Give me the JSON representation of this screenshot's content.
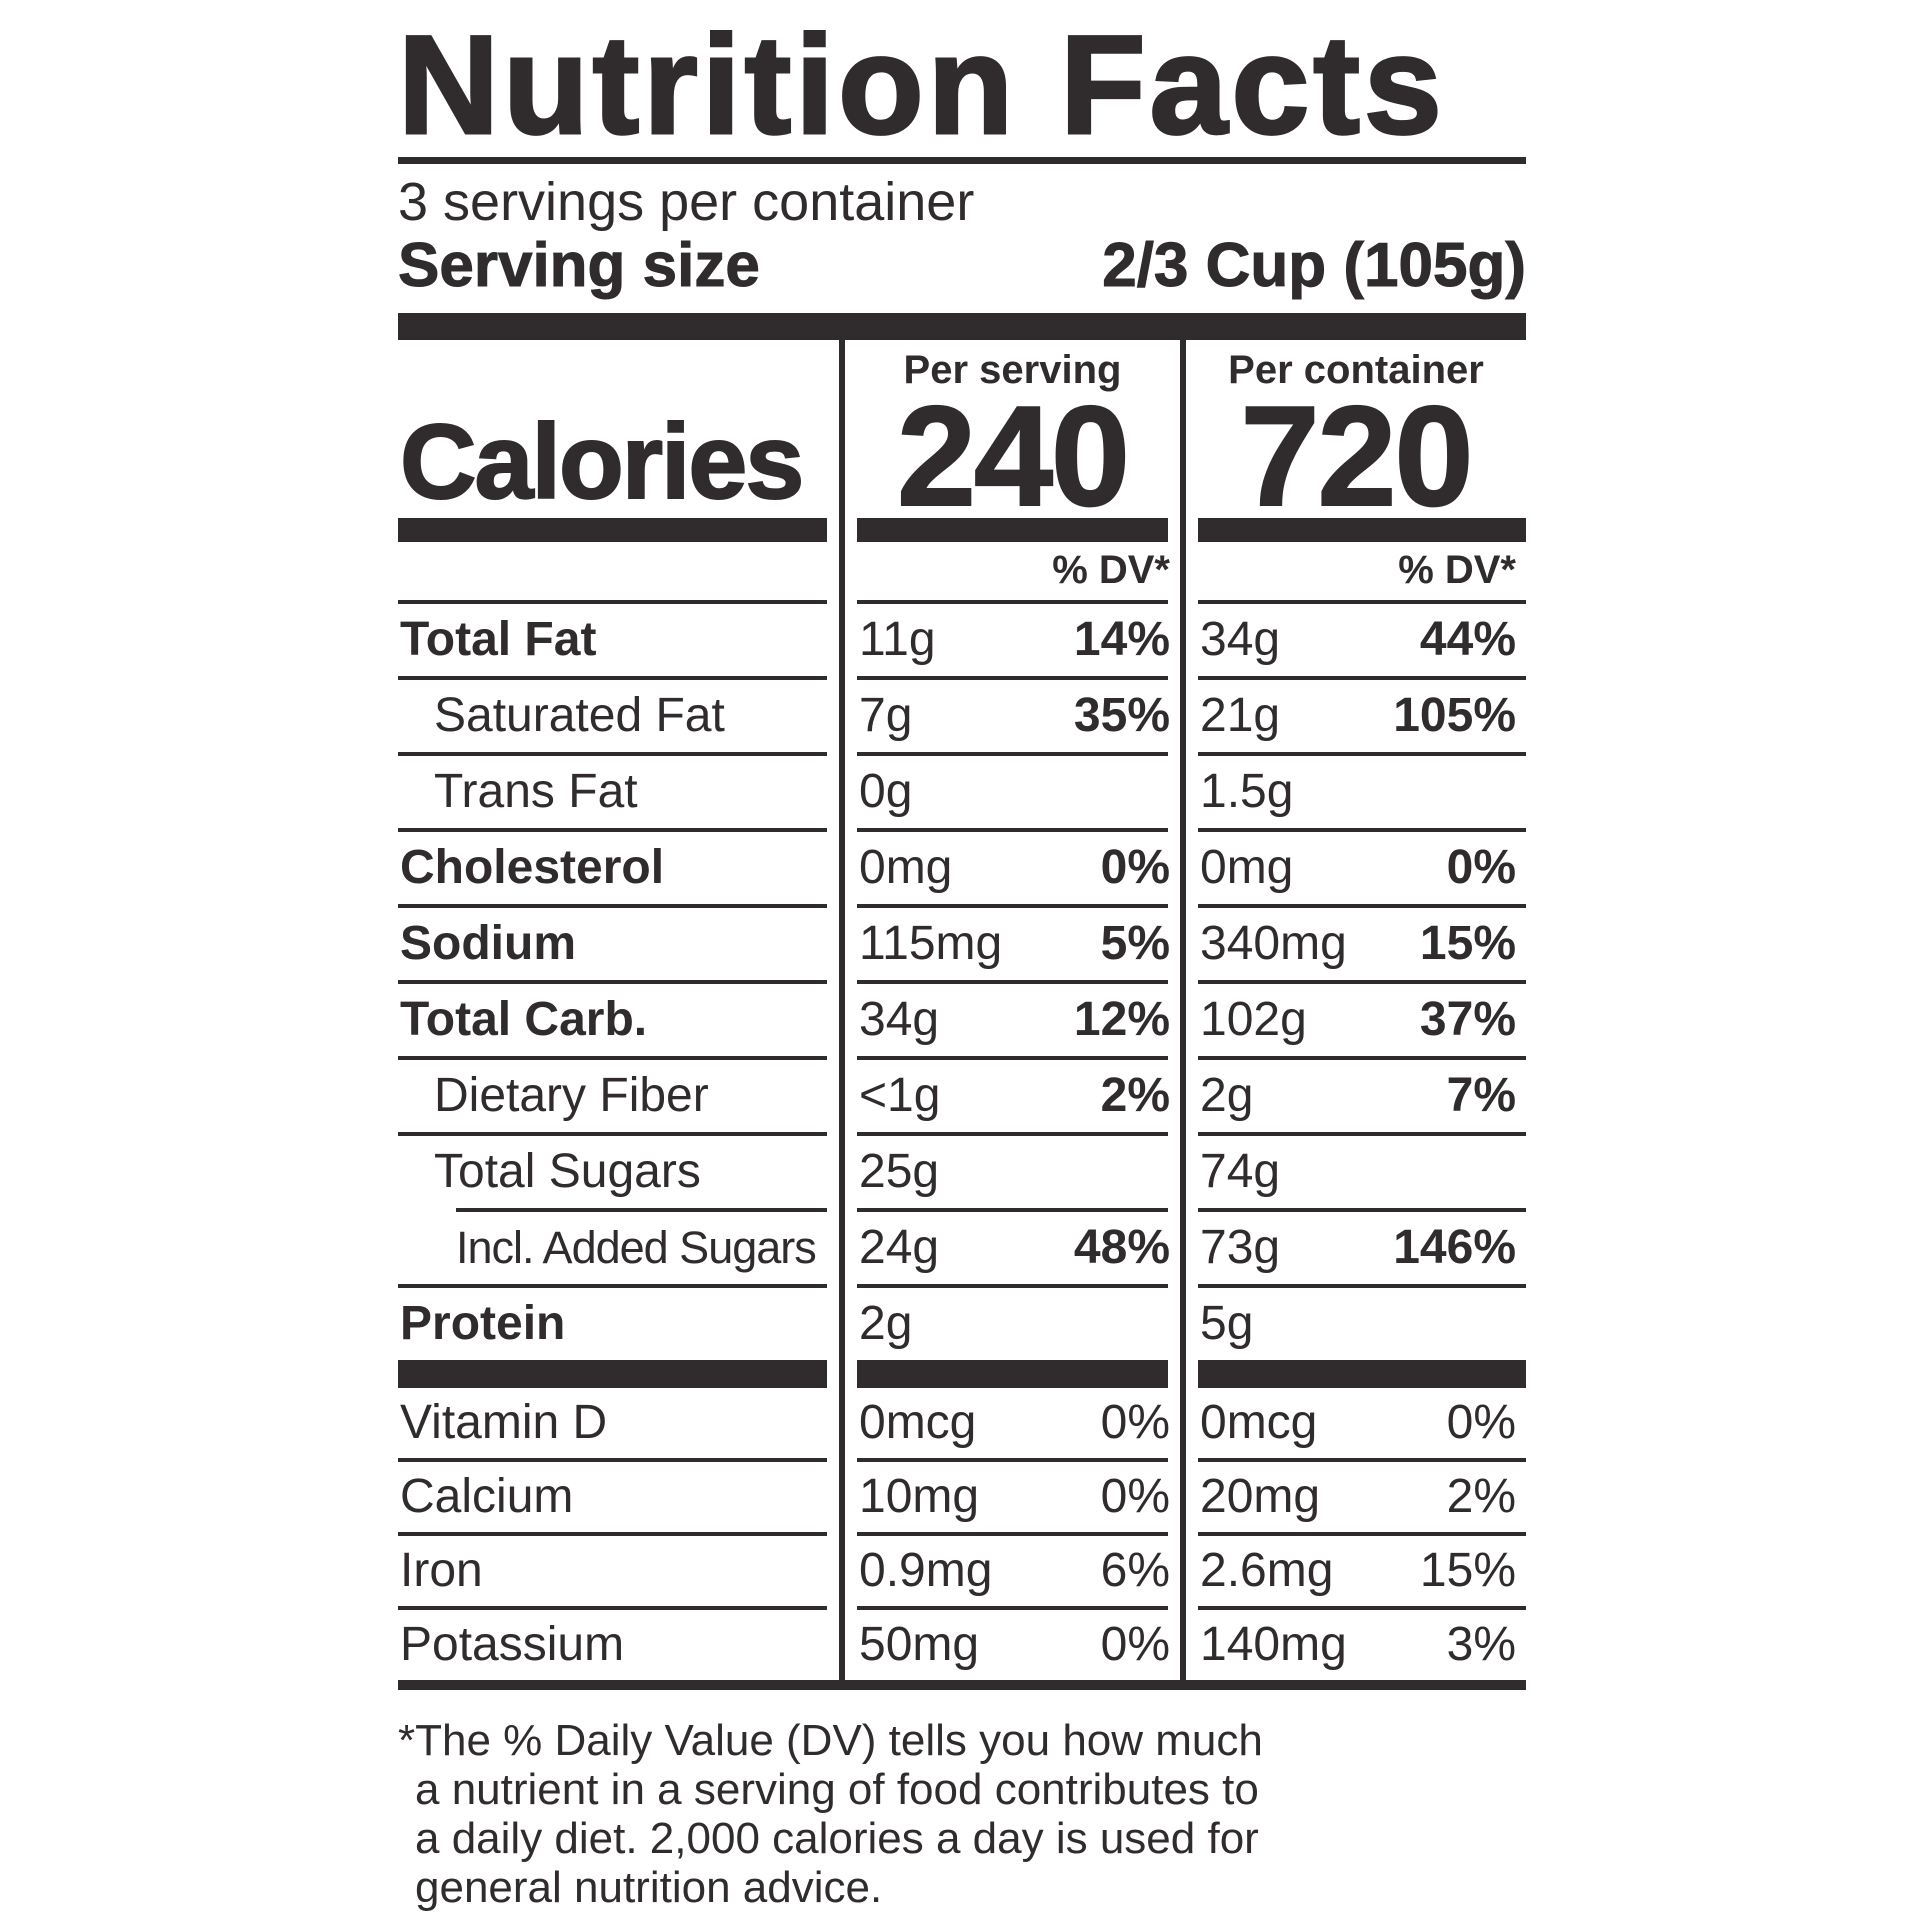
{
  "ink_color": "#302c2d",
  "title": "Nutrition Facts",
  "servings_per_container": "3 servings per container",
  "serving_size": {
    "label": "Serving size",
    "value": "2/3 Cup (105g)"
  },
  "calories": {
    "label": "Calories",
    "per_serving_header": "Per serving",
    "per_container_header": "Per container",
    "per_serving": "240",
    "per_container": "720",
    "dv_header": "% DV*"
  },
  "nutrients": [
    {
      "name": "Total Fat",
      "ps_amt": "11g",
      "ps_dv": "14%",
      "pc_amt": "34g",
      "pc_dv": "44%"
    },
    {
      "name": "Saturated Fat",
      "ps_amt": "7g",
      "ps_dv": "35%",
      "pc_amt": "21g",
      "pc_dv": "105%"
    },
    {
      "name": "Trans Fat",
      "ps_amt": "0g",
      "ps_dv": "",
      "pc_amt": "1.5g",
      "pc_dv": ""
    },
    {
      "name": "Cholesterol",
      "ps_amt": "0mg",
      "ps_dv": "0%",
      "pc_amt": "0mg",
      "pc_dv": "0%"
    },
    {
      "name": "Sodium",
      "ps_amt": "115mg",
      "ps_dv": "5%",
      "pc_amt": "340mg",
      "pc_dv": "15%"
    },
    {
      "name": "Total Carb.",
      "ps_amt": "34g",
      "ps_dv": "12%",
      "pc_amt": "102g",
      "pc_dv": "37%"
    },
    {
      "name": "Dietary Fiber",
      "ps_amt": "<1g",
      "ps_dv": "2%",
      "pc_amt": "2g",
      "pc_dv": "7%"
    },
    {
      "name": "Total Sugars",
      "ps_amt": "25g",
      "ps_dv": "",
      "pc_amt": "74g",
      "pc_dv": ""
    },
    {
      "name": "Incl. Added Sugars",
      "ps_amt": "24g",
      "ps_dv": "48%",
      "pc_amt": "73g",
      "pc_dv": "146%"
    },
    {
      "name": "Protein",
      "ps_amt": "2g",
      "ps_dv": "",
      "pc_amt": "5g",
      "pc_dv": ""
    }
  ],
  "vitamins": [
    {
      "name": "Vitamin D",
      "ps_amt": "0mcg",
      "ps_dv": "0%",
      "pc_amt": "0mcg",
      "pc_dv": "0%"
    },
    {
      "name": "Calcium",
      "ps_amt": "10mg",
      "ps_dv": "0%",
      "pc_amt": "20mg",
      "pc_dv": "2%"
    },
    {
      "name": "Iron",
      "ps_amt": "0.9mg",
      "ps_dv": "6%",
      "pc_amt": "2.6mg",
      "pc_dv": "15%"
    },
    {
      "name": "Potassium",
      "ps_amt": "50mg",
      "ps_dv": "0%",
      "pc_amt": "140mg",
      "pc_dv": "3%"
    }
  ],
  "footnote_lines": [
    "*The % Daily Value (DV) tells you how much",
    "a nutrient in a serving of food contributes to",
    "a daily diet. 2,000 calories a day is used for",
    "general nutrition advice."
  ]
}
